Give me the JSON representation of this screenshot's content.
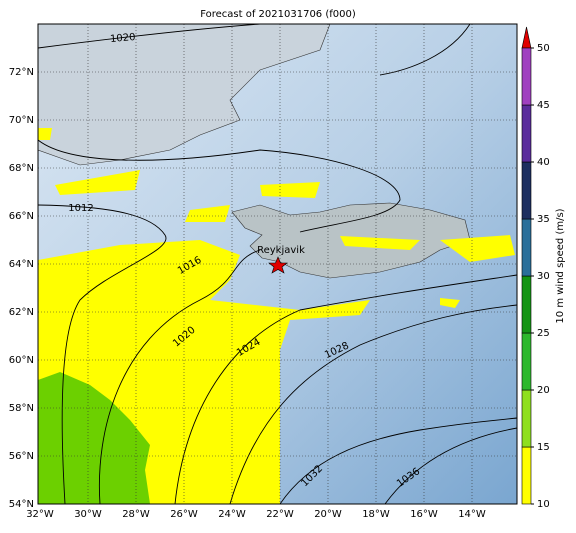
{
  "title": "Forecast of 2021031706 (f000)",
  "lon_labels": [
    "32°W",
    "30°W",
    "28°W",
    "26°W",
    "24°W",
    "22°W",
    "20°W",
    "18°W",
    "16°W",
    "14°W"
  ],
  "lat_labels": [
    "72°N",
    "70°N",
    "68°N",
    "66°N",
    "64°N",
    "62°N",
    "60°N",
    "58°N",
    "56°N",
    "54°N"
  ],
  "isobar_labels": [
    "1020",
    "1012",
    "1016",
    "1020",
    "1024",
    "1028",
    "1032",
    "1036"
  ],
  "city": "Reykjavik",
  "colorbar": {
    "label": "10 m wind speed (m/s)",
    "ticks": [
      10,
      15,
      20,
      25,
      30,
      35,
      40,
      45,
      50
    ]
  }
}
